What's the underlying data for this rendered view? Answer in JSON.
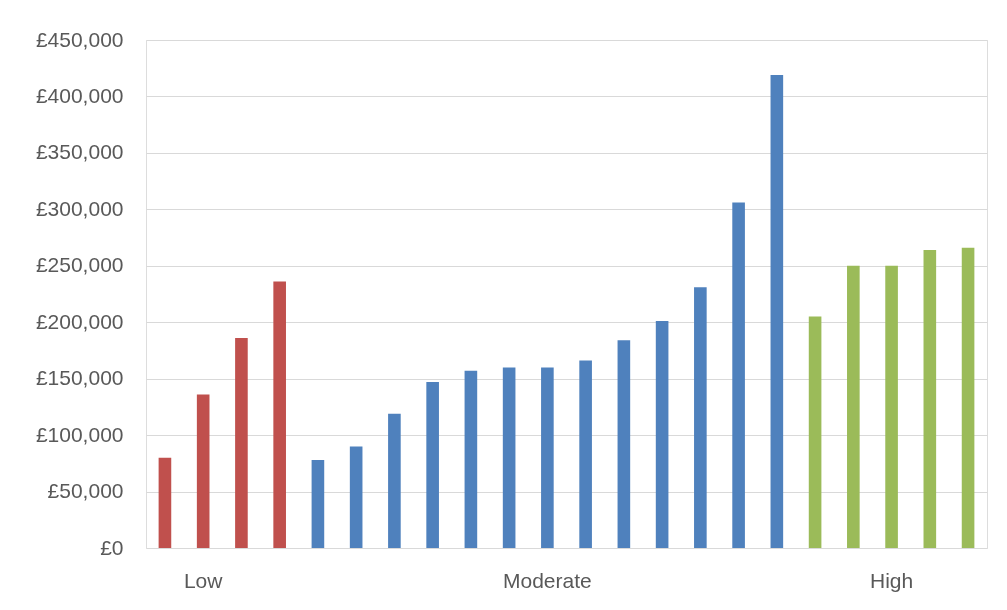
{
  "chart_data": {
    "type": "bar",
    "categories": [
      null,
      "Low",
      null,
      null,
      null,
      null,
      null,
      null,
      null,
      null,
      "Moderate",
      null,
      null,
      null,
      null,
      null,
      null,
      null,
      null,
      "High",
      null,
      null
    ],
    "values": [
      80000,
      136000,
      186000,
      236000,
      78000,
      90000,
      119000,
      147000,
      157000,
      160000,
      160000,
      166000,
      184000,
      201000,
      231000,
      306000,
      419000,
      205000,
      250000,
      250000,
      264000,
      266000
    ],
    "colors": [
      "#c0504d",
      "#c0504d",
      "#c0504d",
      "#c0504d",
      "#4f81bd",
      "#4f81bd",
      "#4f81bd",
      "#4f81bd",
      "#4f81bd",
      "#4f81bd",
      "#4f81bd",
      "#4f81bd",
      "#4f81bd",
      "#4f81bd",
      "#4f81bd",
      "#4f81bd",
      "#4f81bd",
      "#9bbb59",
      "#9bbb59",
      "#9bbb59",
      "#9bbb59",
      "#9bbb59"
    ],
    "ylim": [
      0,
      450000
    ],
    "yticks": [
      {
        "value": 0,
        "label": "£0"
      },
      {
        "value": 50000,
        "label": "£50,000"
      },
      {
        "value": 100000,
        "label": "£100,000"
      },
      {
        "value": 150000,
        "label": "£150,000"
      },
      {
        "value": 200000,
        "label": "£200,000"
      },
      {
        "value": 250000,
        "label": "£250,000"
      },
      {
        "value": 300000,
        "label": "£300,000"
      },
      {
        "value": 350000,
        "label": "£350,000"
      },
      {
        "value": 400000,
        "label": "£400,000"
      },
      {
        "value": 450000,
        "label": "£450,000"
      }
    ],
    "grid": "y"
  }
}
